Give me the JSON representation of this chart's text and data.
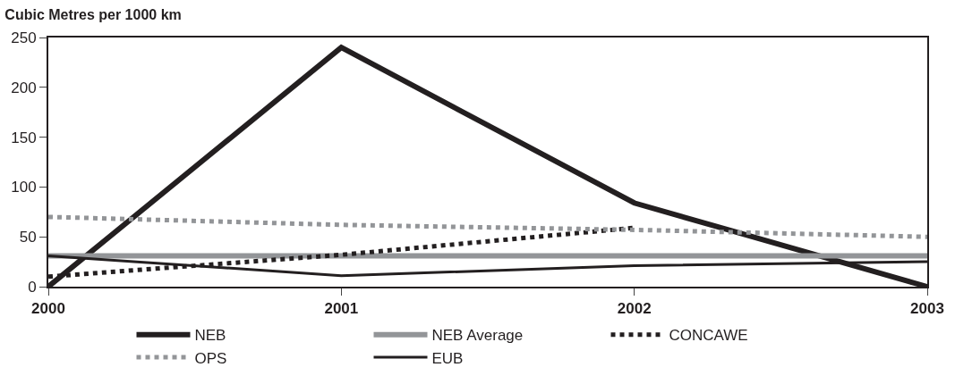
{
  "chart_data": {
    "type": "line",
    "title": "Cubic Metres per 1000 km",
    "x": [
      2000,
      2001,
      2002,
      2003
    ],
    "series": [
      {
        "name": "NEB",
        "color": "#231f20",
        "values": [
          0,
          240,
          84,
          0
        ],
        "line_style": "solid"
      },
      {
        "name": "NEB Average",
        "color": "#939598",
        "values": [
          31,
          31,
          31,
          31
        ],
        "line_style": "solid"
      },
      {
        "name": "CONCAWE",
        "color": "#231f20",
        "values": [
          10,
          32,
          59,
          null
        ],
        "line_style": "dotted"
      },
      {
        "name": "OPS",
        "color": "#939598",
        "values": [
          70,
          62,
          57,
          50
        ],
        "line_style": "dotted"
      },
      {
        "name": "EUB",
        "color": "#231f20",
        "values": [
          31,
          11,
          21,
          25
        ],
        "line_style": "solid"
      }
    ],
    "xlim": [
      2000,
      2003
    ],
    "xticks": [
      2000,
      2001,
      2002,
      2003
    ],
    "ylim": [
      0,
      250
    ],
    "yticks": [
      0,
      50,
      100,
      150,
      200,
      250
    ],
    "legend": "bottom",
    "marker": "none"
  }
}
